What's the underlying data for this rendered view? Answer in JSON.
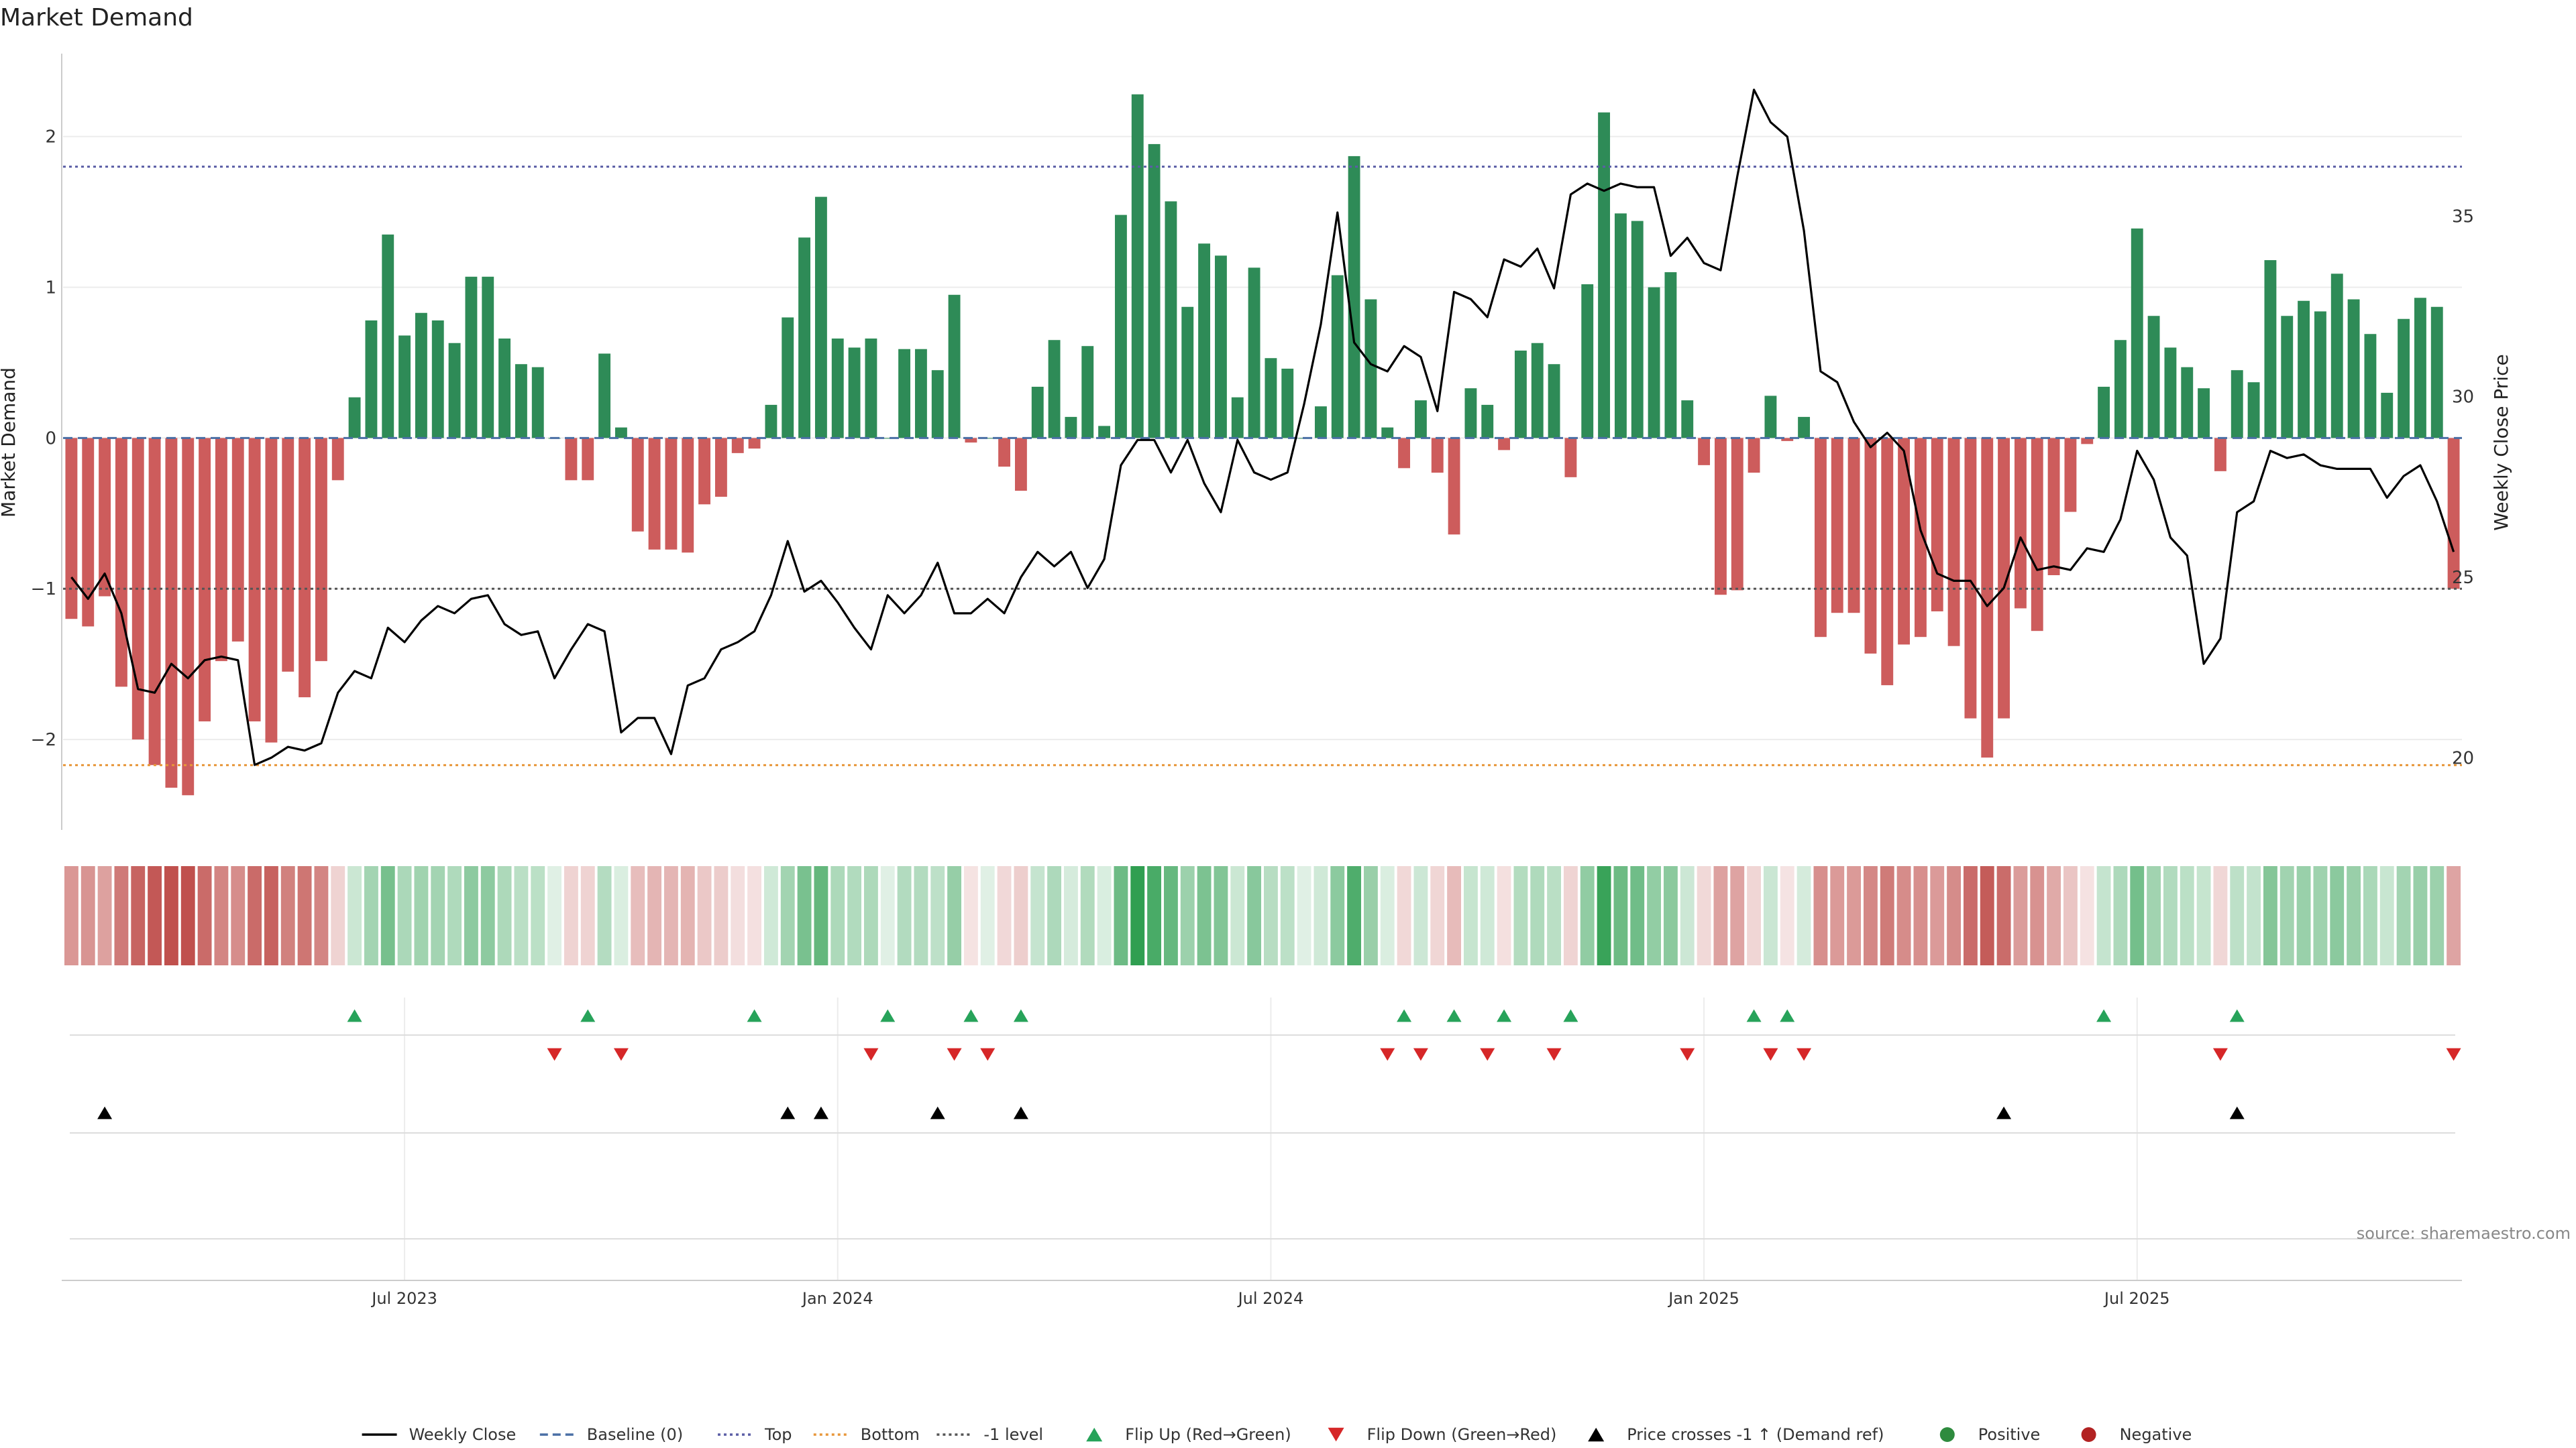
{
  "chart_data": {
    "type": "bar",
    "title": "Market Demand",
    "ylabel_left": "Market Demand",
    "ylabel_right": "Weekly Close Price",
    "ylim_left": [
      -2.6,
      2.55
    ],
    "ylim_right": [
      18,
      39.5
    ],
    "left_ticks": [
      2,
      1,
      0,
      -1,
      -2
    ],
    "left_tick_labels": [
      "2",
      "1",
      "0",
      "−1",
      "−2"
    ],
    "right_ticks": [
      35,
      30,
      25,
      20
    ],
    "right_tick_labels": [
      "35",
      "30",
      "25",
      "20"
    ],
    "x_ticks": [
      {
        "week": 20,
        "label": "Jul 2023"
      },
      {
        "week": 46,
        "label": "Jan 2024"
      },
      {
        "week": 72,
        "label": "Jul 2024"
      },
      {
        "week": 98,
        "label": "Jan 2025"
      },
      {
        "week": 124,
        "label": "Jul 2025"
      }
    ],
    "reference_lines": {
      "top": 1.8,
      "bottom": -2.17,
      "minus_one": -1.0,
      "baseline": 0
    },
    "series": [
      {
        "name": "Market Demand",
        "values": [
          -1.2,
          -1.25,
          -1.05,
          -1.65,
          -2.0,
          -2.17,
          -2.32,
          -2.37,
          -1.88,
          -1.48,
          -1.35,
          -1.88,
          -2.02,
          -1.55,
          -1.72,
          -1.48,
          -0.28,
          0.27,
          0.78,
          1.35,
          0.68,
          0.83,
          0.78,
          0.63,
          1.07,
          1.07,
          0.66,
          0.49,
          0.47,
          0.0,
          -0.28,
          -0.28,
          0.56,
          0.07,
          -0.62,
          -0.74,
          -0.74,
          -0.76,
          -0.44,
          -0.39,
          -0.1,
          -0.07,
          0.22,
          0.8,
          1.33,
          1.6,
          0.66,
          0.6,
          0.66,
          0.0,
          0.59,
          0.59,
          0.45,
          0.95,
          -0.03,
          0.0,
          -0.19,
          -0.35,
          0.34,
          0.65,
          0.14,
          0.61,
          0.08,
          1.48,
          2.28,
          1.95,
          1.57,
          0.87,
          1.29,
          1.21,
          0.27,
          1.13,
          0.53,
          0.46,
          0.0,
          0.21,
          1.08,
          1.87,
          0.92,
          0.07,
          -0.2,
          0.25,
          -0.23,
          -0.64,
          0.33,
          0.22,
          -0.08,
          0.58,
          0.63,
          0.49,
          -0.26,
          1.02,
          2.16,
          1.49,
          1.44,
          1.0,
          1.1,
          0.25,
          -0.18,
          -1.04,
          -1.01,
          -0.23,
          0.28,
          -0.02,
          0.14,
          -1.32,
          -1.16,
          -1.16,
          -1.43,
          -1.64,
          -1.37,
          -1.32,
          -1.15,
          -1.38,
          -1.86,
          -2.12,
          -1.86,
          -1.13,
          -1.28,
          -0.91,
          -0.49,
          -0.04,
          0.34,
          0.65,
          1.39,
          0.81,
          0.6,
          0.47,
          0.33,
          -0.22,
          0.45,
          0.37,
          1.18,
          0.81,
          0.91,
          0.84,
          1.09,
          0.92,
          0.69,
          0.3,
          0.79,
          0.93,
          0.87,
          -1.0
        ]
      },
      {
        "name": "Weekly Close",
        "values": [
          25.0,
          24.4,
          25.1,
          24.0,
          21.9,
          21.8,
          22.6,
          22.2,
          22.7,
          22.8,
          22.7,
          19.8,
          20.0,
          20.3,
          20.2,
          20.4,
          21.8,
          22.4,
          22.2,
          23.6,
          23.2,
          23.8,
          24.2,
          24.0,
          24.4,
          24.5,
          23.7,
          23.4,
          23.5,
          22.2,
          23.0,
          23.7,
          23.5,
          20.7,
          21.1,
          21.1,
          20.1,
          22.0,
          22.2,
          23.0,
          23.2,
          23.5,
          24.5,
          26.0,
          24.6,
          24.9,
          24.3,
          23.6,
          23.0,
          24.5,
          24.0,
          24.5,
          25.4,
          24.0,
          24.0,
          24.4,
          24.0,
          25.0,
          25.7,
          25.3,
          25.7,
          24.7,
          25.5,
          28.1,
          28.8,
          28.8,
          27.9,
          28.8,
          27.6,
          26.8,
          28.8,
          27.9,
          27.7,
          27.9,
          29.8,
          32.0,
          35.1,
          31.5,
          30.9,
          30.7,
          31.4,
          31.1,
          29.6,
          32.9,
          32.7,
          32.2,
          33.8,
          33.6,
          34.1,
          33.0,
          35.6,
          35.9,
          35.7,
          35.9,
          35.8,
          35.8,
          33.9,
          34.4,
          33.7,
          33.5,
          36.1,
          38.5,
          37.6,
          37.2,
          34.6,
          30.7,
          30.4,
          29.3,
          28.6,
          29.0,
          28.5,
          26.3,
          25.1,
          24.9,
          24.9,
          24.2,
          24.7,
          26.1,
          25.2,
          25.3,
          25.2,
          25.8,
          25.7,
          26.6,
          28.5,
          27.7,
          26.1,
          25.6,
          22.6,
          23.3,
          26.8,
          27.1,
          28.5,
          28.3,
          28.4,
          28.1,
          28.0,
          28.0,
          28.0,
          27.2,
          27.8,
          28.1,
          27.1,
          25.7
        ]
      }
    ],
    "flip_up_weeks": [
      17,
      31,
      41,
      49,
      54,
      57,
      80,
      83,
      86,
      90,
      101,
      103,
      122,
      130
    ],
    "flip_down_weeks": [
      29,
      33,
      48,
      53,
      55,
      79,
      81,
      85,
      89,
      97,
      102,
      104,
      129,
      143
    ],
    "price_cross_weeks": [
      2,
      43,
      45,
      52,
      57,
      116,
      130
    ],
    "source": "source: sharemaestro.com",
    "legend": [
      {
        "label": "Weekly Close",
        "marker": "line",
        "color": "#000000"
      },
      {
        "label": "Baseline (0)",
        "marker": "dashed",
        "color": "#4a6fa5"
      },
      {
        "label": "Top",
        "marker": "dotted",
        "color": "#5b5ea6"
      },
      {
        "label": "Bottom",
        "marker": "dotted",
        "color": "#e8973a"
      },
      {
        "label": "-1 level",
        "marker": "dotted",
        "color": "#555555"
      },
      {
        "label": "Flip Up (Red→Green)",
        "marker": "triangle-up",
        "color": "#27a35a"
      },
      {
        "label": "Flip Down (Green→Red)",
        "marker": "triangle-down",
        "color": "#d62728"
      },
      {
        "label": "Price crosses -1 ↑ (Demand ref)",
        "marker": "triangle-up",
        "color": "#000000"
      },
      {
        "label": "Positive",
        "marker": "circle",
        "color": "#2e8b3e"
      },
      {
        "label": "Negative",
        "marker": "circle",
        "color": "#b22222"
      }
    ],
    "colors": {
      "positive": "#2e8b57",
      "negative": "#cd5c5c",
      "grid": "#ececec",
      "axis": "#cccccc"
    }
  }
}
